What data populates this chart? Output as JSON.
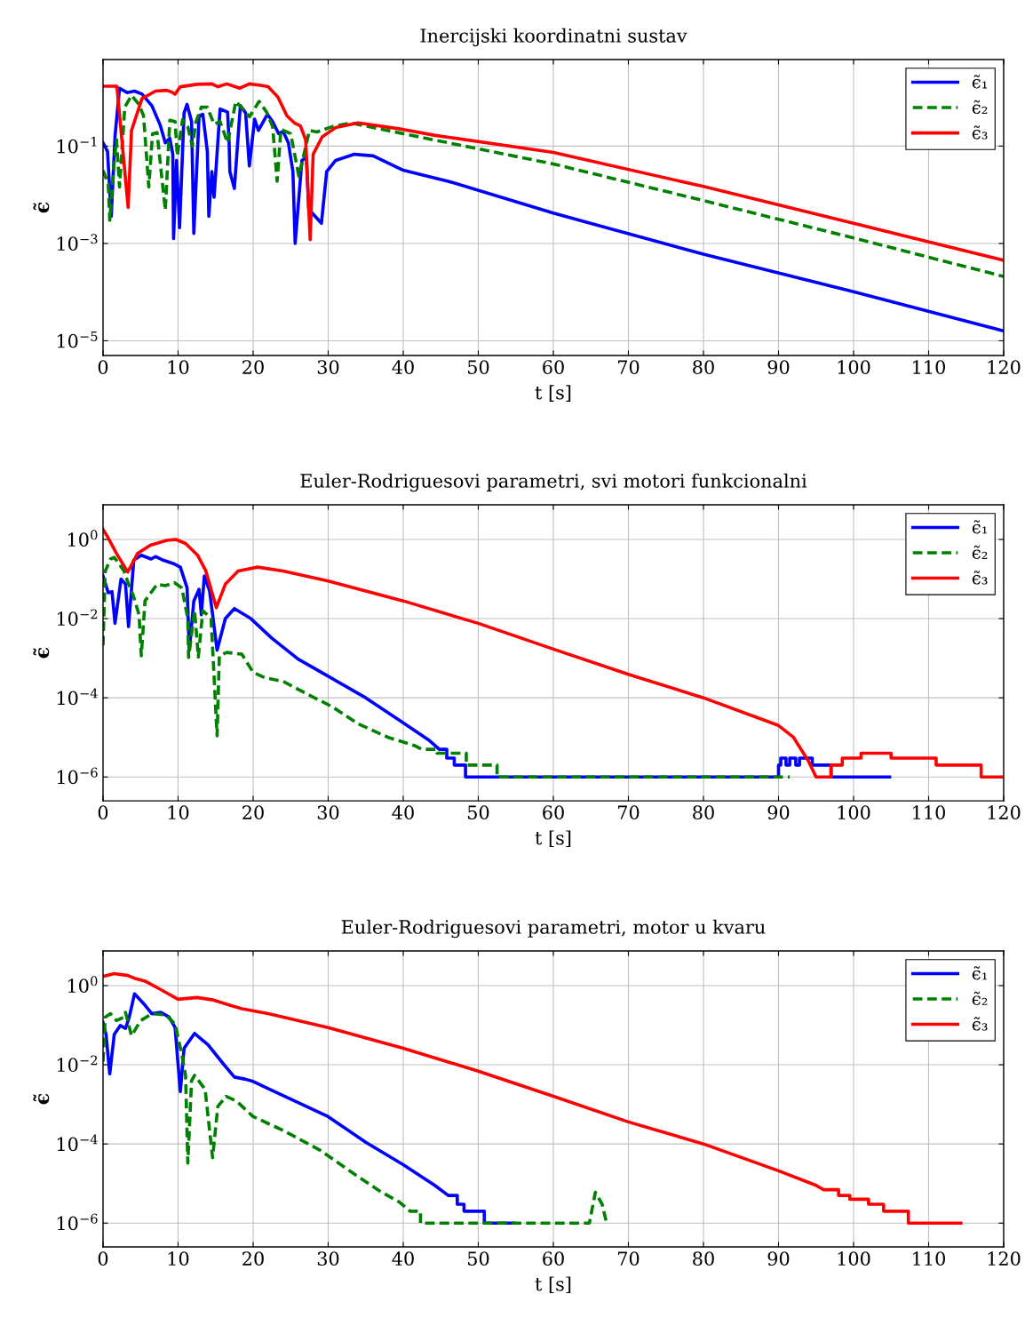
{
  "chart_data": [
    {
      "type": "line",
      "title": "Inercijski koordinatni sustav",
      "xlabel": "t [s]",
      "ylabel": "ϵ̃",
      "log": "y",
      "grid": true,
      "legend": "top right",
      "xlim": [
        0,
        120
      ],
      "xticks": [
        0,
        10,
        20,
        30,
        40,
        50,
        60,
        70,
        80,
        90,
        100,
        110,
        120
      ],
      "ylim": [
        5e-06,
        6
      ],
      "yticks": [
        {
          "value": 1e-05,
          "label": "10$^{−5}$"
        },
        {
          "value": 0.001,
          "label": "10$^{−3}$"
        },
        {
          "value": 0.1,
          "label": "10$^{−1}$"
        }
      ],
      "series": [
        {
          "name": "ϵ̃₁",
          "color": "#0000ff",
          "line_style": "solid",
          "x": [
            0,
            0.6,
            1.1,
            1.6,
            2.2,
            3.2,
            4.2,
            5.2,
            6.5,
            7.6,
            8.3,
            8.9,
            9.3,
            9.4,
            9.8,
            10.2,
            10.8,
            11.2,
            11.8,
            12.1,
            12.8,
            13.3,
            13.9,
            14.1,
            14.5,
            14.8,
            15.6,
            16.6,
            16.8,
            16.9,
            17.5,
            18.3,
            19.0,
            19.5,
            20.2,
            20.7,
            21.9,
            22.6,
            23.4,
            24.0,
            24.7,
            25.3,
            25.6,
            26.5,
            27.1,
            27.4,
            29.1,
            29.8,
            31,
            33.5,
            36,
            40,
            44.3,
            46,
            60,
            80,
            100,
            120
          ],
          "values": [
            0.117,
            0.078,
            0.0036,
            0.16,
            1.55,
            1.26,
            1.35,
            1.17,
            0.68,
            0.275,
            0.117,
            0.145,
            0.068,
            0.00126,
            0.051,
            0.0021,
            0.48,
            0.72,
            0.32,
            0.0016,
            0.42,
            0.45,
            0.078,
            0.0036,
            0.03,
            0.0089,
            0.58,
            0.5,
            0.117,
            0.03,
            0.0135,
            0.68,
            0.48,
            0.039,
            0.36,
            0.21,
            0.45,
            0.32,
            0.18,
            0.2,
            0.117,
            0.03,
            0.001,
            0.051,
            0.059,
            0.0051,
            0.0026,
            0.03,
            0.051,
            0.068,
            0.063,
            0.032,
            0.022,
            0.019,
            0.0042,
            0.0006,
            0.000102,
            1.6e-05
          ]
        },
        {
          "name": "ϵ̃₂",
          "color": "#008000",
          "line_style": "dashed",
          "x": [
            0,
            0.7,
            0.9,
            1.5,
            1.8,
            2.2,
            2.9,
            3.8,
            4.8,
            5.4,
            6.1,
            6.6,
            7.2,
            8.3,
            8.9,
            9.6,
            9.9,
            10.6,
            11.3,
            11.9,
            12.4,
            13.1,
            13.9,
            14.8,
            15.6,
            16.6,
            17.7,
            18.7,
            19.5,
            20.8,
            21.8,
            22.6,
            23.2,
            23.7,
            25,
            26.1,
            27.5,
            28.5,
            30.5,
            33,
            44,
            60,
            80,
            100,
            120
          ],
          "values": [
            0.032,
            0.0166,
            0.003,
            0.05,
            0.135,
            0.0145,
            0.63,
            1.1,
            0.72,
            0.42,
            0.0145,
            0.18,
            0.19,
            0.0048,
            0.34,
            0.32,
            0.063,
            0.35,
            0.25,
            0.1,
            0.32,
            0.63,
            0.63,
            0.28,
            0.32,
            0.117,
            0.83,
            0.56,
            0.4,
            0.83,
            0.5,
            0.25,
            0.019,
            0.22,
            0.18,
            0.024,
            0.21,
            0.195,
            0.25,
            0.3,
            0.135,
            0.043,
            0.0076,
            0.0013,
            0.00021
          ]
        },
        {
          "name": "ϵ̃₃",
          "color": "#ff0000",
          "line_style": "solid",
          "x": [
            0,
            1.85,
            3.35,
            3.8,
            5.2,
            7,
            8.5,
            9.3,
            9.6,
            10.3,
            12.5,
            14.5,
            15.3,
            16.5,
            18.2,
            19.5,
            21,
            22,
            23.3,
            24.5,
            25.5,
            26.3,
            27,
            27.6,
            28,
            29.2,
            31,
            34,
            40,
            44.3,
            60,
            80,
            100,
            120
          ],
          "values": [
            1.7,
            1.7,
            0.0055,
            0.21,
            0.95,
            1.35,
            1.4,
            1.26,
            1.17,
            1.66,
            1.86,
            1.9,
            1.66,
            1.9,
            1.55,
            1.9,
            1.78,
            1.66,
            1.02,
            0.42,
            0.3,
            0.26,
            0.135,
            0.0012,
            0.068,
            0.155,
            0.24,
            0.3,
            0.22,
            0.166,
            0.074,
            0.0148,
            0.0026,
            0.00045
          ]
        }
      ]
    },
    {
      "type": "line",
      "title": "Euler-Rodriguesovi parametri, svi motori funkcionalni",
      "xlabel": "t [s]",
      "ylabel": "ϵ̃",
      "log": "y",
      "grid": true,
      "legend": "top right",
      "xlim": [
        0,
        120
      ],
      "xticks": [
        0,
        10,
        20,
        30,
        40,
        50,
        60,
        70,
        80,
        90,
        100,
        110,
        120
      ],
      "ylim": [
        2.5e-07,
        7.5
      ],
      "yticks": [
        {
          "value": 1e-06,
          "label": "10$^{−6}$"
        },
        {
          "value": 0.0001,
          "label": "10$^{−4}$"
        },
        {
          "value": 0.01,
          "label": "10$^{−2}$"
        },
        {
          "value": 1,
          "label": "10$^{0}$"
        }
      ],
      "series": [
        {
          "name": "ϵ̃₁",
          "color": "#0000ff",
          "line_style": "solid",
          "x": [
            0,
            0.7,
            1.2,
            1.6,
            2.4,
            3.0,
            3.4,
            4.1,
            5.1,
            6.4,
            7.0,
            8.0,
            9.5,
            10.3,
            11.2,
            11.5,
            12.1,
            12.8,
            13.1,
            13.5,
            14.2,
            15.2,
            16.3,
            17.5,
            19.7,
            22.5,
            26,
            30,
            35,
            39.5,
            43.5,
            44.8,
            45.8,
            45.8,
            46.8,
            46.8,
            48.3,
            48.3,
            90,
            90,
            90.3,
            90.3,
            91,
            91,
            91.5,
            91.5,
            92.3,
            92.3,
            92.8,
            92.8,
            94.5,
            94.5,
            97,
            97,
            104.8
          ],
          "values": [
            0.12,
            0.045,
            0.048,
            0.0076,
            0.1,
            0.074,
            0.0063,
            0.3,
            0.4,
            0.32,
            0.37,
            0.3,
            0.24,
            0.2,
            0.06,
            0.0016,
            0.028,
            0.055,
            0.0126,
            0.12,
            0.05,
            0.0016,
            0.01,
            0.018,
            0.01,
            0.0032,
            0.00095,
            0.00035,
            0.0001,
            2.7e-05,
            8.3e-06,
            5e-06,
            5e-06,
            3e-06,
            3e-06,
            2e-06,
            2e-06,
            1e-06,
            1e-06,
            2e-06,
            2e-06,
            3e-06,
            3e-06,
            2e-06,
            2e-06,
            3e-06,
            3e-06,
            2e-06,
            2e-06,
            3e-06,
            3e-06,
            2e-06,
            2e-06,
            1e-06,
            1e-06
          ]
        },
        {
          "name": "ϵ̃₂",
          "color": "#008000",
          "line_style": "dashed",
          "x": [
            0,
            0.3,
            1.0,
            1.5,
            2.8,
            3.4,
            4.0,
            4.8,
            5.1,
            5.6,
            7.2,
            8.3,
            9.5,
            10.5,
            11.3,
            11.4,
            12.2,
            12.7,
            13.3,
            14.4,
            15.2,
            15.5,
            16.5,
            18.5,
            20,
            21.6,
            24,
            27,
            30.5,
            34,
            38,
            41.5,
            42.5,
            44.5,
            44.5,
            48.4,
            48.4,
            52.5,
            52.5,
            91.5
          ],
          "values": [
            0.0021,
            0.16,
            0.32,
            0.35,
            0.16,
            0.074,
            0.04,
            0.0126,
            0.00115,
            0.028,
            0.074,
            0.068,
            0.081,
            0.06,
            0.01,
            0.00105,
            0.016,
            0.00107,
            0.016,
            0.01,
            1.1e-05,
            0.00115,
            0.0014,
            0.00126,
            0.00044,
            0.00032,
            0.00026,
            0.00013,
            6e-05,
            2.2e-05,
            1e-05,
            6.2e-06,
            5e-06,
            5e-06,
            4e-06,
            4e-06,
            2e-06,
            2e-06,
            1e-06,
            1e-06
          ]
        },
        {
          "name": "ϵ̃₃",
          "color": "#ff0000",
          "line_style": "solid",
          "x": [
            0,
            0.6,
            1.8,
            3.3,
            4.6,
            6.3,
            8.5,
            9.7,
            11,
            12.6,
            13.7,
            15.1,
            16.3,
            18,
            20.6,
            24,
            30,
            40,
            50,
            60,
            70,
            80,
            90,
            92,
            94,
            95,
            97,
            97,
            98.5,
            98.5,
            101,
            101,
            105,
            105,
            111,
            111,
            117,
            117,
            120
          ],
          "values": [
            1.8,
            1.17,
            0.44,
            0.15,
            0.44,
            0.71,
            0.95,
            1.0,
            0.79,
            0.4,
            0.16,
            0.019,
            0.074,
            0.16,
            0.2,
            0.16,
            0.089,
            0.028,
            0.0076,
            0.0017,
            0.00039,
            0.0001,
            2e-05,
            1e-05,
            2.5e-06,
            1e-06,
            1e-06,
            2e-06,
            2e-06,
            3e-06,
            3e-06,
            4e-06,
            4e-06,
            3e-06,
            3e-06,
            2e-06,
            2e-06,
            1e-06,
            1e-06
          ]
        }
      ]
    },
    {
      "type": "line",
      "title": "Euler-Rodriguesovi parametri, motor u kvaru",
      "xlabel": "t [s]",
      "ylabel": "ϵ̃",
      "log": "y",
      "grid": true,
      "legend": "top right",
      "xlim": [
        0,
        120
      ],
      "xticks": [
        0,
        10,
        20,
        30,
        40,
        50,
        60,
        70,
        80,
        90,
        100,
        110,
        120
      ],
      "ylim": [
        2.5e-07,
        7.5
      ],
      "yticks": [
        {
          "value": 1e-06,
          "label": "10$^{−6}$"
        },
        {
          "value": 0.0001,
          "label": "10$^{−4}$"
        },
        {
          "value": 0.01,
          "label": "10$^{−2}$"
        },
        {
          "value": 1,
          "label": "10$^{0}$"
        }
      ],
      "series": [
        {
          "name": "ϵ̃₁",
          "color": "#0000ff",
          "line_style": "solid",
          "x": [
            0,
            0.4,
            0.9,
            1.5,
            2.3,
            3.0,
            3.5,
            4.2,
            5.6,
            6.5,
            7.7,
            8.8,
            9.6,
            10.3,
            10.8,
            12.2,
            14,
            16,
            17.5,
            19,
            20,
            22,
            30,
            35,
            40,
            44.2,
            46,
            47.2,
            47.2,
            48.1,
            48.1,
            50.8,
            50.8,
            54.7
          ],
          "values": [
            0.117,
            0.059,
            0.0059,
            0.059,
            0.098,
            0.083,
            0.16,
            0.62,
            0.32,
            0.195,
            0.21,
            0.16,
            0.087,
            0.0021,
            0.026,
            0.062,
            0.032,
            0.0107,
            0.0049,
            0.0043,
            0.0038,
            0.0025,
            0.00049,
            0.00011,
            3e-05,
            9e-06,
            5e-06,
            5e-06,
            3e-06,
            3e-06,
            2e-06,
            2e-06,
            1e-06,
            1e-06
          ]
        },
        {
          "name": "ϵ̃₂",
          "color": "#008000",
          "line_style": "dashed",
          "x": [
            0,
            0.3,
            1.0,
            1.8,
            2.8,
            3.0,
            3.8,
            5.0,
            6.5,
            8.4,
            9.6,
            10.5,
            11,
            11.3,
            11.8,
            12.2,
            13.6,
            14.6,
            15.3,
            16.4,
            17.8,
            20,
            24,
            29,
            33,
            37,
            39.5,
            40.9,
            42.3,
            42.3,
            64.8,
            65.6,
            66.5,
            67.1
          ],
          "values": [
            0.012,
            0.16,
            0.195,
            0.13,
            0.16,
            0.21,
            0.054,
            0.13,
            0.195,
            0.18,
            0.107,
            0.018,
            0.0054,
            3.3e-05,
            0.004,
            0.0054,
            0.0024,
            4.5e-05,
            0.00089,
            0.0016,
            0.0012,
            0.00049,
            0.00022,
            6.8e-05,
            2e-05,
            6.2e-06,
            3.4e-06,
            2e-06,
            2e-06,
            1e-06,
            1e-06,
            6e-06,
            3e-06,
            1e-06
          ]
        },
        {
          "name": "ϵ̃₃",
          "color": "#ff0000",
          "line_style": "solid",
          "x": [
            0,
            1.5,
            3.3,
            4.3,
            5.6,
            7.7,
            10,
            12.5,
            14.5,
            18.5,
            22,
            30,
            40,
            50,
            60,
            70,
            80,
            90,
            95,
            96,
            98,
            98,
            99.5,
            99.5,
            102,
            102,
            104,
            104,
            107.3,
            107.3,
            114.3
          ],
          "values": [
            1.7,
            2.0,
            1.8,
            1.5,
            1.3,
            0.79,
            0.45,
            0.5,
            0.44,
            0.26,
            0.195,
            0.087,
            0.026,
            0.0069,
            0.0016,
            0.00036,
            0.0001,
            2.1e-05,
            9e-06,
            7e-06,
            7e-06,
            5e-06,
            5e-06,
            4e-06,
            4e-06,
            3e-06,
            3e-06,
            2e-06,
            2e-06,
            1e-06,
            1e-06
          ]
        }
      ]
    }
  ]
}
